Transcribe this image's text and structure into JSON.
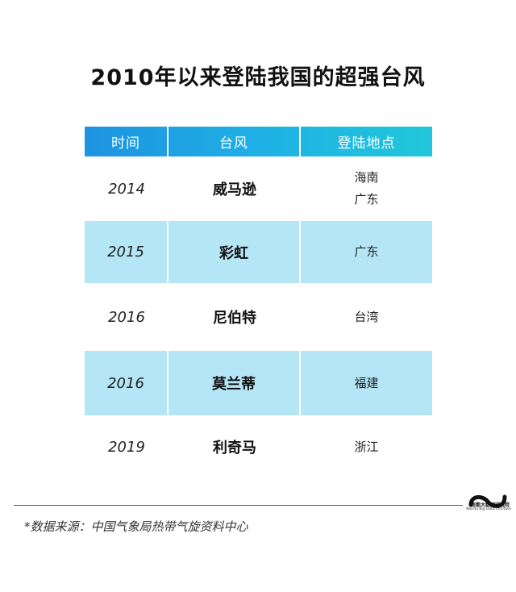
{
  "title": "2010年以来登陆我国的超强台风",
  "table": {
    "headers": [
      "时间",
      "台风",
      "登陆地点"
    ],
    "rows": [
      {
        "year": "2014",
        "name": "威马逊",
        "places": [
          "海南",
          "广东"
        ]
      },
      {
        "year": "2015",
        "name": "彩虹",
        "places": [
          "广东"
        ]
      },
      {
        "year": "2016",
        "name": "尼伯特",
        "places": [
          "台湾"
        ]
      },
      {
        "year": "2016",
        "name": "莫兰蒂",
        "places": [
          "福建"
        ]
      },
      {
        "year": "2019",
        "name": "利奇马",
        "places": [
          "浙江"
        ]
      }
    ]
  },
  "source": "*数据来源：中国气象局热带气旋资料中心",
  "logo": {
    "name": "南都大数据研究院",
    "subtitle": "Nandu Big Data Institute"
  },
  "colors": {
    "header_gradient_start": "#1e93e0",
    "header_gradient_end": "#21c7d9",
    "row_shade": "#b4e6f6"
  }
}
